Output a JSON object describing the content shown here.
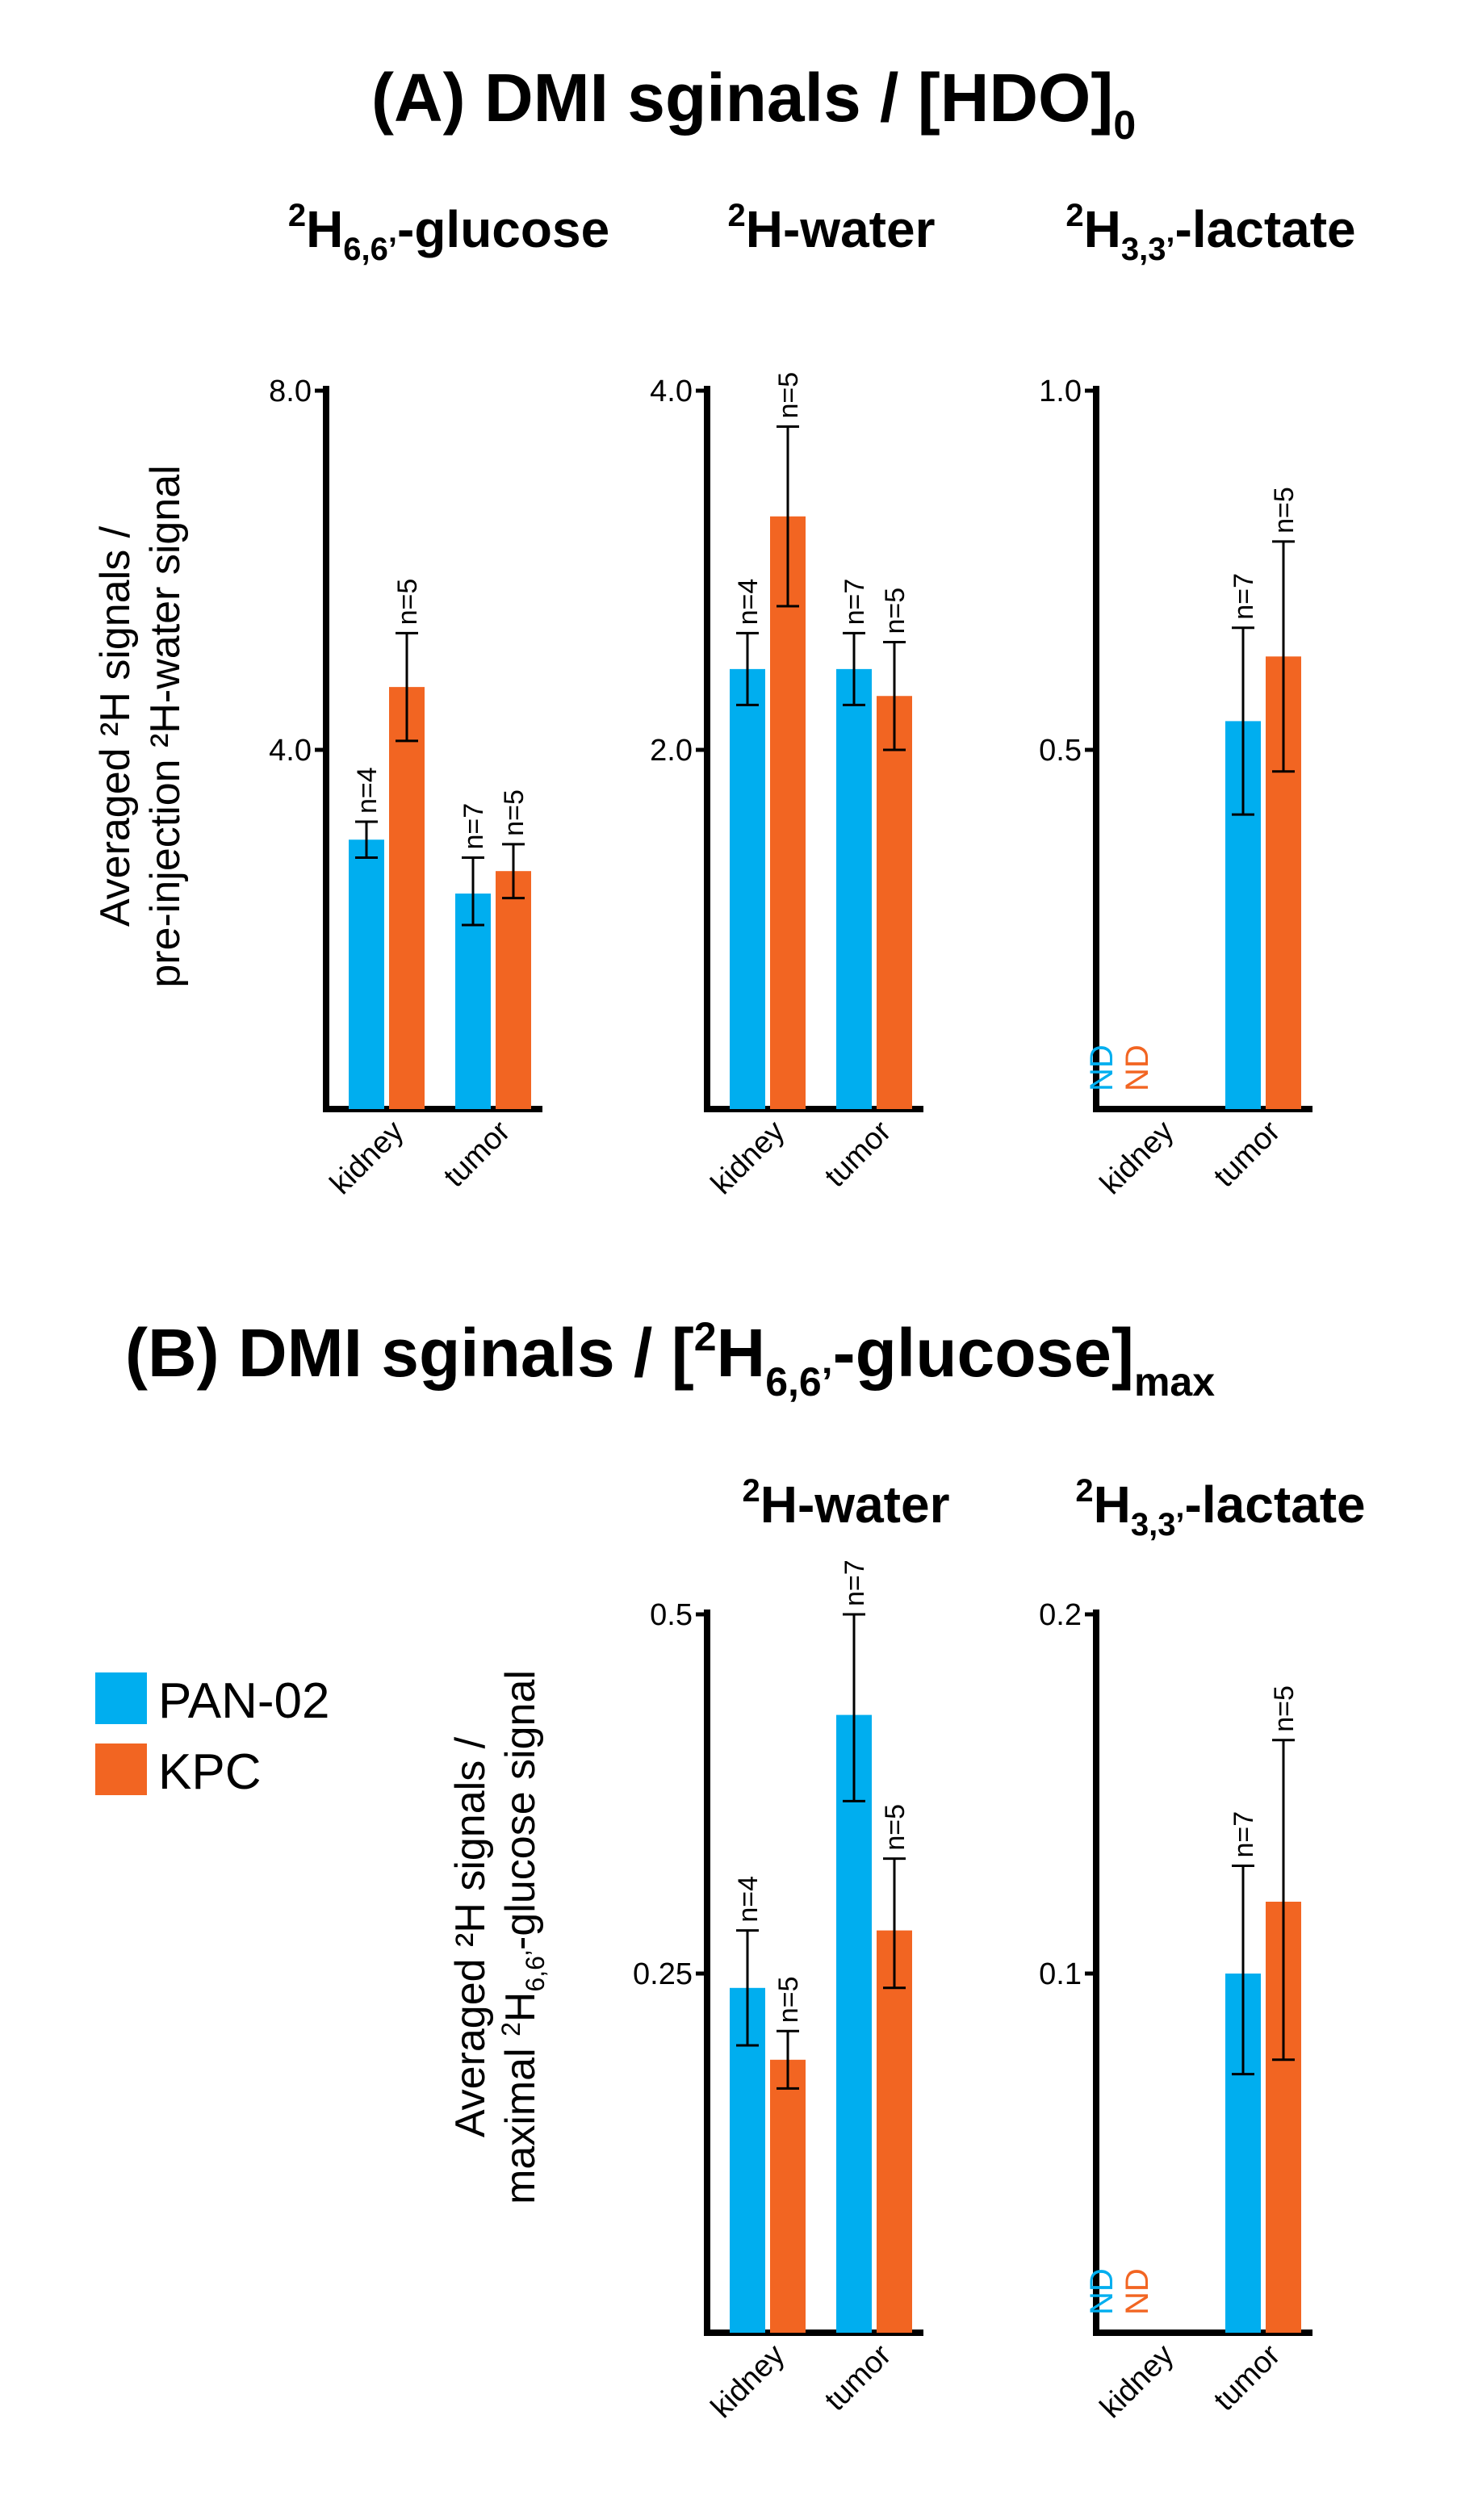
{
  "colors": {
    "pan02": "#00AEEF",
    "kpc": "#F26522",
    "axis": "#000000"
  },
  "section_a": {
    "title_main": "(A) DMI sginals / [HDO]",
    "title_sub": "0",
    "ylabel_line1": "Averaged  ²H signals /",
    "ylabel_line2": "pre-injection ²H-water signal"
  },
  "section_b": {
    "title_main_1": "(B) DMI sginals / [",
    "title_sup": "2",
    "title_main_2": "H",
    "title_sub1": "6,6’",
    "title_main_3": "-glucose]",
    "title_sub2": "max",
    "ylabel_line1": "Averaged ²H signals /",
    "ylabel_line2_a": "maximal ",
    "ylabel_line2_sup": "2",
    "ylabel_line2_b": "H",
    "ylabel_line2_sub": "6,6’",
    "ylabel_line2_c": "-glucose signal"
  },
  "legend": {
    "items": [
      {
        "label": "PAN-02",
        "color": "#00AEEF"
      },
      {
        "label": "KPC",
        "color": "#F26522"
      }
    ]
  },
  "chart_data": [
    {
      "type": "bar",
      "section": "A",
      "title": {
        "sup": "2",
        "base": "H",
        "sub": "6,6’",
        "rest": "-glucose"
      },
      "categories": [
        "kidney",
        "tumor"
      ],
      "ylim": [
        0,
        8.0
      ],
      "ticks": [
        4.0,
        8.0
      ],
      "tick_labels": [
        "4.0",
        "8.0"
      ],
      "series": [
        {
          "name": "PAN-02",
          "values": [
            3.0,
            2.4
          ],
          "err_low": [
            2.8,
            2.05
          ],
          "err_high": [
            3.2,
            2.8
          ],
          "n": [
            "n=4",
            "n=7"
          ],
          "nd": [
            false,
            false
          ]
        },
        {
          "name": "KPC",
          "values": [
            4.7,
            2.65
          ],
          "err_low": [
            4.1,
            2.35
          ],
          "err_high": [
            5.3,
            2.95
          ],
          "n": [
            "n=5",
            "n=5"
          ],
          "nd": [
            false,
            false
          ]
        }
      ]
    },
    {
      "type": "bar",
      "section": "A",
      "title": {
        "sup": "2",
        "base": "H",
        "sub": "",
        "rest": "-water"
      },
      "categories": [
        "kidney",
        "tumor"
      ],
      "ylim": [
        0,
        4.0
      ],
      "ticks": [
        2.0,
        4.0
      ],
      "tick_labels": [
        "2.0",
        "4.0"
      ],
      "series": [
        {
          "name": "PAN-02",
          "values": [
            2.45,
            2.45
          ],
          "err_low": [
            2.25,
            2.25
          ],
          "err_high": [
            2.65,
            2.65
          ],
          "n": [
            "n=4",
            "n=7"
          ],
          "nd": [
            false,
            false
          ]
        },
        {
          "name": "KPC",
          "values": [
            3.3,
            2.3
          ],
          "err_low": [
            2.8,
            2.0
          ],
          "err_high": [
            3.8,
            2.6
          ],
          "n": [
            "n=5",
            "n=5"
          ],
          "nd": [
            false,
            false
          ]
        }
      ]
    },
    {
      "type": "bar",
      "section": "A",
      "title": {
        "sup": "2",
        "base": "H",
        "sub": "3,3’",
        "rest": "-lactate"
      },
      "categories": [
        "kidney",
        "tumor"
      ],
      "ylim": [
        0,
        1.0
      ],
      "ticks": [
        0.5,
        1.0
      ],
      "tick_labels": [
        "0.5",
        "1.0"
      ],
      "nd_text": "ND",
      "series": [
        {
          "name": "PAN-02",
          "values": [
            null,
            0.54
          ],
          "err_low": [
            null,
            0.41
          ],
          "err_high": [
            null,
            0.67
          ],
          "n": [
            "",
            "n=7"
          ],
          "nd": [
            true,
            false
          ]
        },
        {
          "name": "KPC",
          "values": [
            null,
            0.63
          ],
          "err_low": [
            null,
            0.47
          ],
          "err_high": [
            null,
            0.79
          ],
          "n": [
            "",
            "n=5"
          ],
          "nd": [
            true,
            false
          ]
        }
      ]
    },
    {
      "type": "bar",
      "section": "B",
      "title": {
        "sup": "2",
        "base": "H",
        "sub": "",
        "rest": "-water"
      },
      "categories": [
        "kidney",
        "tumor"
      ],
      "ylim": [
        0,
        0.5
      ],
      "ticks": [
        0.25,
        0.5
      ],
      "tick_labels": [
        "0.25",
        "0.5"
      ],
      "series": [
        {
          "name": "PAN-02",
          "values": [
            0.24,
            0.43
          ],
          "err_low": [
            0.2,
            0.37
          ],
          "err_high": [
            0.28,
            0.5
          ],
          "n": [
            "n=4",
            "n=7"
          ],
          "nd": [
            false,
            false
          ]
        },
        {
          "name": "KPC",
          "values": [
            0.19,
            0.28
          ],
          "err_low": [
            0.17,
            0.24
          ],
          "err_high": [
            0.21,
            0.33
          ],
          "n": [
            "n=5",
            "n=5"
          ],
          "nd": [
            false,
            false
          ]
        }
      ]
    },
    {
      "type": "bar",
      "section": "B",
      "title": {
        "sup": "2",
        "base": "H",
        "sub": "3,3’",
        "rest": "-lactate"
      },
      "categories": [
        "kidney",
        "tumor"
      ],
      "ylim": [
        0,
        0.2
      ],
      "ticks": [
        0.1,
        0.2
      ],
      "tick_labels": [
        "0.1",
        "0.2"
      ],
      "nd_text": "ND",
      "series": [
        {
          "name": "PAN-02",
          "values": [
            null,
            0.1
          ],
          "err_low": [
            null,
            0.072
          ],
          "err_high": [
            null,
            0.13
          ],
          "n": [
            "",
            "n=7"
          ],
          "nd": [
            true,
            false
          ]
        },
        {
          "name": "KPC",
          "values": [
            null,
            0.12
          ],
          "err_low": [
            null,
            0.076
          ],
          "err_high": [
            null,
            0.165
          ],
          "n": [
            "",
            "n=5"
          ],
          "nd": [
            true,
            false
          ]
        }
      ]
    }
  ]
}
